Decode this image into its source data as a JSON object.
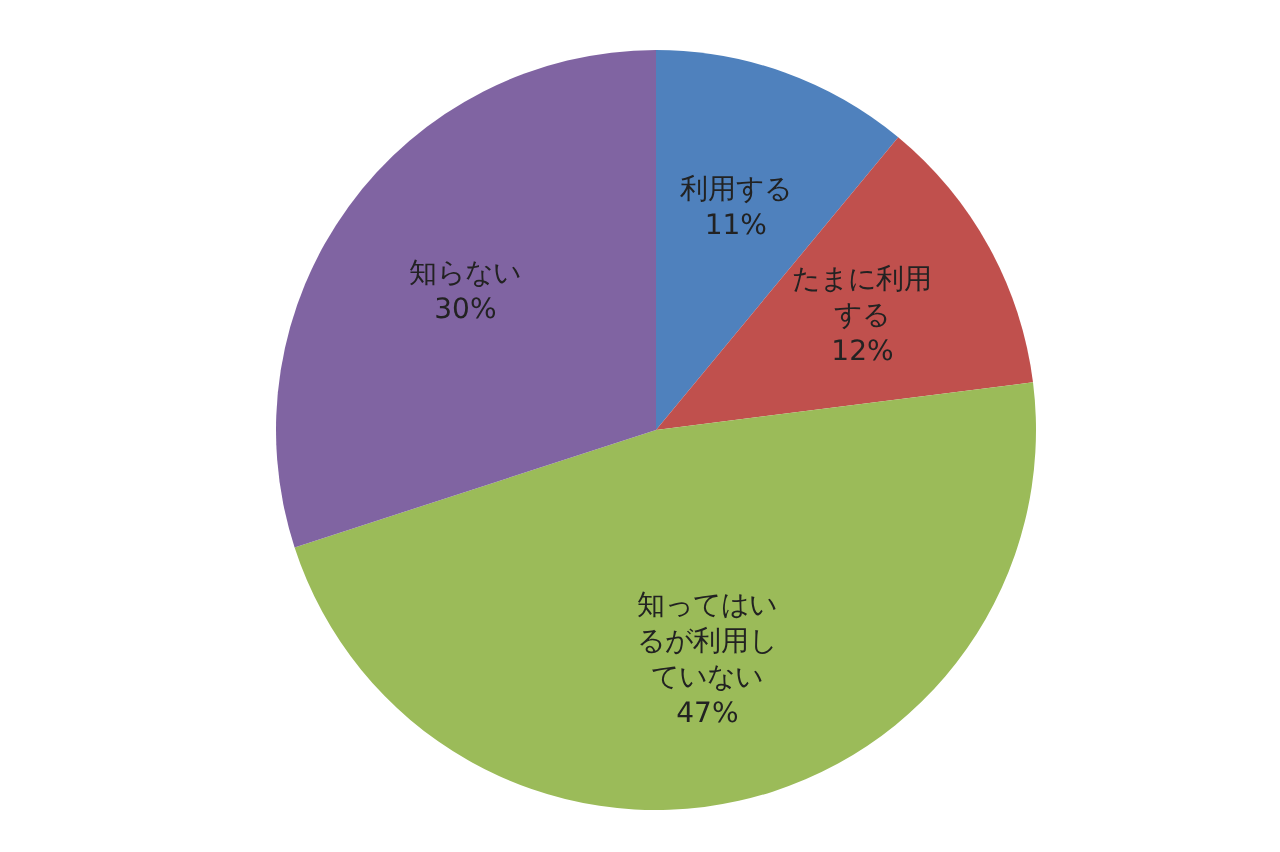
{
  "chart_data": {
    "type": "pie",
    "categories": [
      "利用する",
      "たまに利用する",
      "知ってはいるが利用していない",
      "知らない"
    ],
    "values": [
      11,
      12,
      47,
      30
    ],
    "value_labels": [
      "11%",
      "12%",
      "47%",
      "30%"
    ],
    "colors": [
      "#4f81bd",
      "#c0504d",
      "#9bbb59",
      "#8064a2"
    ]
  }
}
